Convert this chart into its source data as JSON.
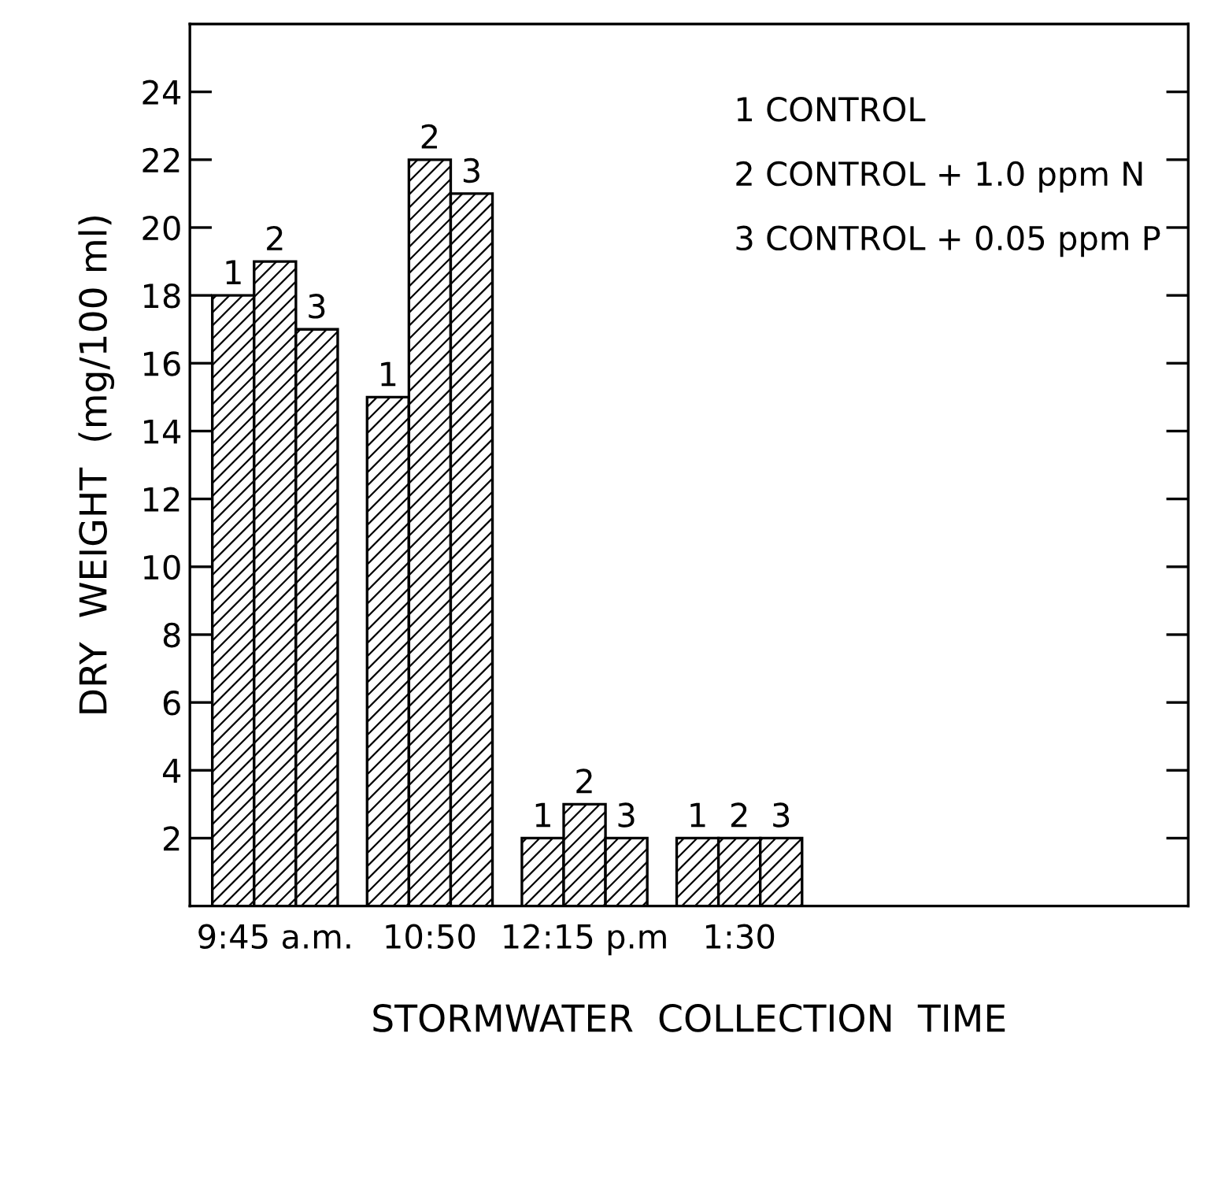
{
  "chart_data": {
    "type": "bar",
    "xlabel": "STORMWATER  COLLECTION  TIME",
    "ylabel": "DRY  WEIGHT  (mg/100 ml)",
    "categories": [
      "9:45 a.m.",
      "10:50",
      "12:15 p.m",
      "1:30"
    ],
    "series": [
      {
        "name": "1",
        "color": "#000000",
        "values": [
          18,
          15,
          2,
          2
        ]
      },
      {
        "name": "2",
        "color": "#000000",
        "values": [
          19,
          22,
          3,
          2
        ]
      },
      {
        "name": "3",
        "color": "#000000",
        "values": [
          17,
          21,
          2,
          2
        ]
      }
    ],
    "annotations": [
      "1 CONTROL",
      "2 CONTROL + 1.0 ppm N",
      "3 CONTROL + 0.05 ppm P"
    ],
    "ylim": [
      0,
      26
    ],
    "yticks": [
      2,
      4,
      6,
      8,
      10,
      12,
      14,
      16,
      18,
      20,
      22,
      24
    ],
    "grid": false
  }
}
